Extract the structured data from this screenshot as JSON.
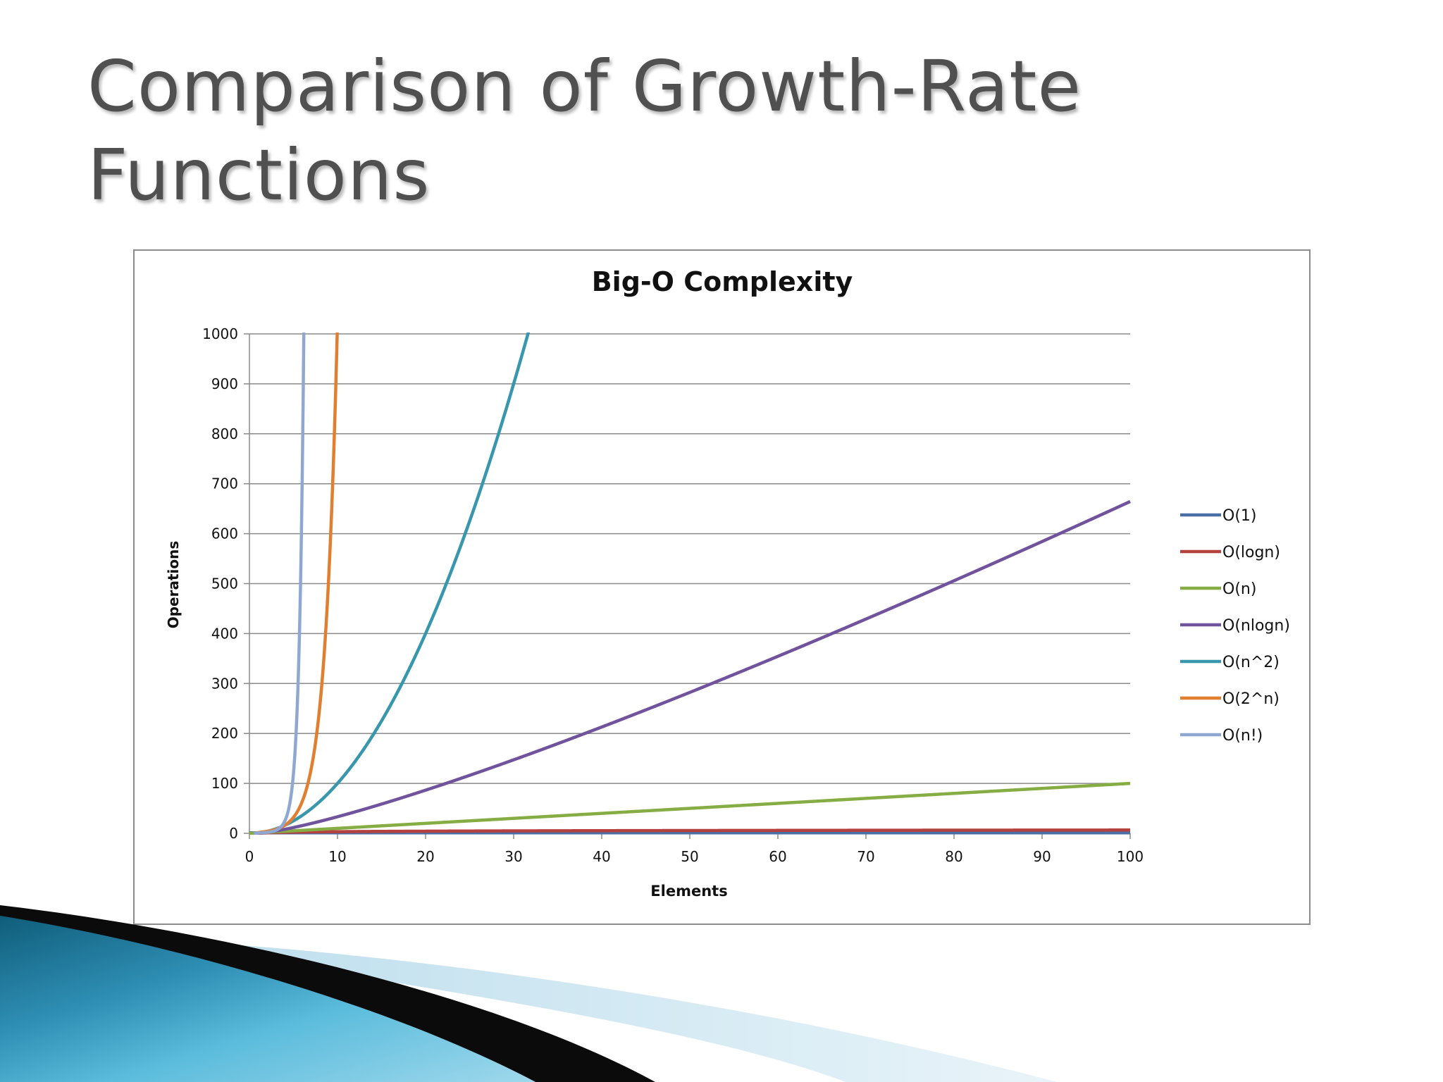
{
  "slide": {
    "title_line1": "Comparison of Growth-Rate",
    "title_line2": "Functions"
  },
  "chart_data": {
    "type": "line",
    "title": "Big-O Complexity",
    "xlabel": "Elements",
    "ylabel": "Operations",
    "xlim": [
      0,
      100
    ],
    "ylim": [
      0,
      1000
    ],
    "x_ticks": [
      0,
      10,
      20,
      30,
      40,
      50,
      60,
      70,
      80,
      90,
      100
    ],
    "y_ticks": [
      0,
      100,
      200,
      300,
      400,
      500,
      600,
      700,
      800,
      900,
      1000
    ],
    "grid": "horizontal",
    "legend_position": "right",
    "series": [
      {
        "name": "O(1)",
        "formula": "1",
        "color": "#4a6fa5",
        "x": [
          0,
          100
        ],
        "values": [
          1,
          1
        ]
      },
      {
        "name": "O(logn)",
        "formula": "log2(n)",
        "color": "#b5413f",
        "x": [
          1,
          2,
          5,
          10,
          20,
          50,
          100
        ],
        "values": [
          0,
          1,
          2.32,
          3.32,
          4.32,
          5.64,
          6.64
        ]
      },
      {
        "name": "O(n)",
        "formula": "n",
        "color": "#86ad43",
        "x": [
          0,
          100
        ],
        "values": [
          0,
          100
        ]
      },
      {
        "name": "O(nlogn)",
        "formula": "n*log2(n)",
        "color": "#70539c",
        "x": [
          1,
          10,
          20,
          30,
          40,
          50,
          60,
          70,
          80,
          90,
          100
        ],
        "values": [
          0,
          33.2,
          86.4,
          147.2,
          212.9,
          282.2,
          354.4,
          429.1,
          505.8,
          584.3,
          664.4
        ]
      },
      {
        "name": "O(n^2)",
        "formula": "n^2",
        "color": "#3896ad",
        "x": [
          0,
          5,
          10,
          15,
          20,
          25,
          30,
          31.6
        ],
        "values": [
          0,
          25,
          100,
          225,
          400,
          625,
          900,
          1000
        ]
      },
      {
        "name": "O(2^n)",
        "formula": "2^n",
        "color": "#e07f2f",
        "x": [
          0,
          2,
          4,
          6,
          8,
          9,
          9.97
        ],
        "values": [
          1,
          4,
          16,
          64,
          256,
          512,
          1000
        ]
      },
      {
        "name": "O(n!)",
        "formula": "n!",
        "color": "#8fa8d2",
        "x": [
          0,
          1,
          2,
          3,
          4,
          5,
          6
        ],
        "values": [
          1,
          1,
          2,
          6,
          24,
          120,
          720
        ]
      }
    ]
  }
}
